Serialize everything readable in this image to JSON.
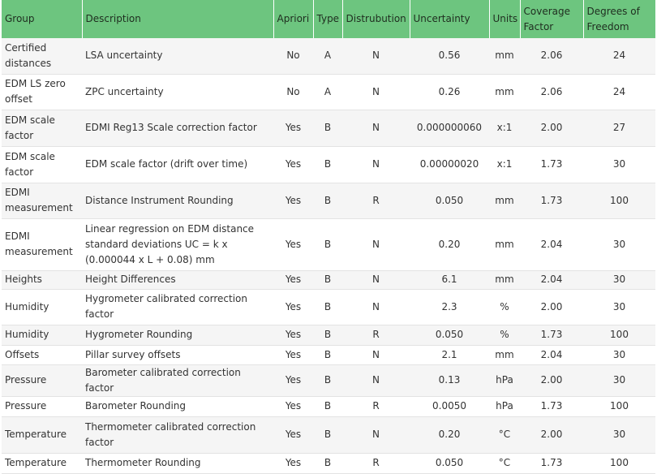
{
  "headers": {
    "group": "Group",
    "description": "Description",
    "apriori": "Apriori",
    "type": "Type",
    "distribution": "Distrubution",
    "uncertainty": "Uncertainty",
    "units": "Units",
    "coverage": "Coverage Factor",
    "dof": "Degrees of Freedom"
  },
  "rows": [
    {
      "group": "Certified distances",
      "description": "LSA uncertainty",
      "apriori": "No",
      "type": "A",
      "distribution": "N",
      "uncertainty": "0.56",
      "units": "mm",
      "coverage": "2.06",
      "dof": "24"
    },
    {
      "group": "EDM LS zero offset",
      "description": "ZPC uncertainty",
      "apriori": "No",
      "type": "A",
      "distribution": "N",
      "uncertainty": "0.26",
      "units": "mm",
      "coverage": "2.06",
      "dof": "24"
    },
    {
      "group": "EDM scale factor",
      "description": "EDMI Reg13 Scale correction factor",
      "apriori": "Yes",
      "type": "B",
      "distribution": "N",
      "uncertainty": "0.000000060",
      "units": "x:1",
      "coverage": "2.00",
      "dof": "27"
    },
    {
      "group": "EDM scale factor",
      "description": "EDM scale factor (drift over time)",
      "apriori": "Yes",
      "type": "B",
      "distribution": "N",
      "uncertainty": "0.00000020",
      "units": "x:1",
      "coverage": "1.73",
      "dof": "30"
    },
    {
      "group": "EDMI measurement",
      "description": "Distance Instrument Rounding",
      "apriori": "Yes",
      "type": "B",
      "distribution": "R",
      "uncertainty": "0.050",
      "units": "mm",
      "coverage": "1.73",
      "dof": "100"
    },
    {
      "group": "EDMI measurement",
      "description": "Linear regression on EDM distance standard deviations UC = k x (0.000044 x L + 0.08) mm",
      "apriori": "Yes",
      "type": "B",
      "distribution": "N",
      "uncertainty": "0.20",
      "units": "mm",
      "coverage": "2.04",
      "dof": "30"
    },
    {
      "group": "Heights",
      "description": "Height Differences",
      "apriori": "Yes",
      "type": "B",
      "distribution": "N",
      "uncertainty": "6.1",
      "units": "mm",
      "coverage": "2.04",
      "dof": "30"
    },
    {
      "group": "Humidity",
      "description": "Hygrometer calibrated correction factor",
      "apriori": "Yes",
      "type": "B",
      "distribution": "N",
      "uncertainty": "2.3",
      "units": "%",
      "coverage": "2.00",
      "dof": "30"
    },
    {
      "group": "Humidity",
      "description": "Hygrometer Rounding",
      "apriori": "Yes",
      "type": "B",
      "distribution": "R",
      "uncertainty": "0.050",
      "units": "%",
      "coverage": "1.73",
      "dof": "100"
    },
    {
      "group": "Offsets",
      "description": "Pillar survey offsets",
      "apriori": "Yes",
      "type": "B",
      "distribution": "N",
      "uncertainty": "2.1",
      "units": "mm",
      "coverage": "2.04",
      "dof": "30"
    },
    {
      "group": "Pressure",
      "description": "Barometer calibrated correction factor",
      "apriori": "Yes",
      "type": "B",
      "distribution": "N",
      "uncertainty": "0.13",
      "units": "hPa",
      "coverage": "2.00",
      "dof": "30"
    },
    {
      "group": "Pressure",
      "description": "Barometer Rounding",
      "apriori": "Yes",
      "type": "B",
      "distribution": "R",
      "uncertainty": "0.0050",
      "units": "hPa",
      "coverage": "1.73",
      "dof": "100"
    },
    {
      "group": "Temperature",
      "description": "Thermometer calibrated correction factor",
      "apriori": "Yes",
      "type": "B",
      "distribution": "N",
      "uncertainty": "0.20",
      "units": "°C",
      "coverage": "2.00",
      "dof": "30"
    },
    {
      "group": "Temperature",
      "description": "Thermometer Rounding",
      "apriori": "Yes",
      "type": "B",
      "distribution": "R",
      "uncertainty": "0.050",
      "units": "°C",
      "coverage": "1.73",
      "dof": "100"
    }
  ]
}
